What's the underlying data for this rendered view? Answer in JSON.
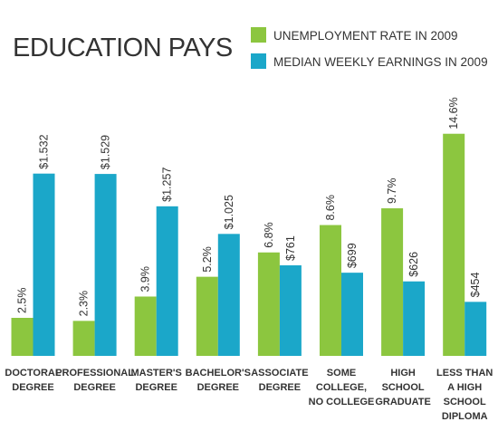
{
  "chart_data": {
    "type": "bar",
    "title": "EDUCATION PAYS",
    "legend_position": "top-right",
    "grid": false,
    "categories": [
      [
        "DOCTORAL",
        "DEGREE"
      ],
      [
        "PROFESSIONAL",
        "DEGREE"
      ],
      [
        "MASTER'S",
        "DEGREE"
      ],
      [
        "BACHELOR'S",
        "DEGREE"
      ],
      [
        "ASSOCIATE",
        "DEGREE"
      ],
      [
        "SOME",
        "COLLEGE,",
        "NO COLLEGE"
      ],
      [
        "HIGH",
        "SCHOOL",
        "GRADUATE"
      ],
      [
        "LESS THAN",
        "A HIGH",
        "SCHOOL",
        "DIPLOMA"
      ]
    ],
    "series": [
      {
        "name": "UNEMPLOYMENT RATE IN 2009",
        "color": "#8cc63f",
        "values": [
          2.5,
          2.3,
          3.9,
          5.2,
          6.8,
          8.6,
          9.7,
          14.6
        ],
        "labels": [
          "2.5%",
          "2.3%",
          "3.9%",
          "5.2%",
          "6.8%",
          "8.6%",
          "9.7%",
          "14.6%"
        ]
      },
      {
        "name": "MEDIAN WEEKLY EARNINGS IN 2009",
        "color": "#1ba7c9",
        "values": [
          1532,
          1529,
          1257,
          1025,
          761,
          699,
          626,
          454
        ],
        "labels": [
          "$1.532",
          "$1.529",
          "$1.257",
          "$1.025",
          "$761",
          "$699",
          "$626",
          "$454"
        ]
      }
    ]
  }
}
